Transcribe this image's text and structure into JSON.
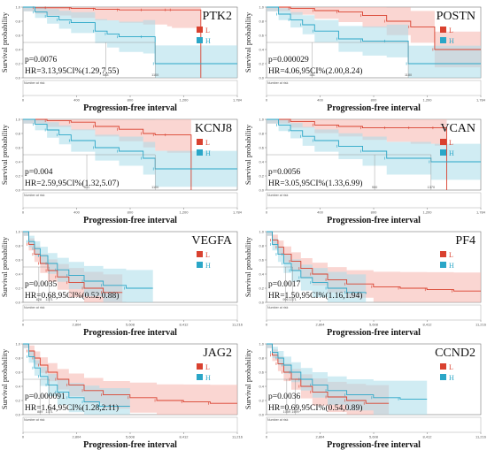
{
  "colors": {
    "low": "#d9412f",
    "high": "#2aa6c7",
    "low_band": "#f5b5ad",
    "high_band": "#a9dcea"
  },
  "common": {
    "ylabel": "Survival probability",
    "xlabel": "Progression-free interval",
    "risk_label": "Number at risk",
    "legend": [
      "L",
      "H"
    ]
  },
  "chart_data": [
    {
      "type": "line",
      "gene": "PTK2",
      "p": "p=0.0076",
      "hr": "HR=3.13,95CI%(1.29,7.55)",
      "xticks": [
        "0",
        "400",
        "800",
        "1,200",
        "1,784"
      ],
      "yticks": [
        "0.0",
        "0.2",
        "0.4",
        "0.6",
        "0.8",
        "1.0"
      ],
      "xlim": [
        0,
        1784
      ],
      "ylim": [
        0,
        1
      ],
      "median_labels": [
        "688",
        "1100"
      ],
      "medians": [
        688,
        1100
      ],
      "series": [
        {
          "name": "L",
          "x": [
            0,
            100,
            200,
            400,
            600,
            800,
            1000,
            1200,
            1240,
            1480
          ],
          "y": [
            1.0,
            0.99,
            0.99,
            0.98,
            0.97,
            0.96,
            0.96,
            0.96,
            0.96,
            0.0
          ]
        },
        {
          "name": "H",
          "x": [
            0,
            100,
            200,
            300,
            400,
            600,
            700,
            800,
            1000,
            1100,
            1784
          ],
          "y": [
            1.0,
            0.93,
            0.87,
            0.82,
            0.78,
            0.66,
            0.62,
            0.58,
            0.58,
            0.2,
            0.2
          ]
        }
      ]
    },
    {
      "type": "line",
      "gene": "POSTN",
      "p": "p=0.000029",
      "hr": "HR=4.06,95CI%(2.00,8.24)",
      "xticks": [
        "0",
        "400",
        "800",
        "1,200",
        "1,784"
      ],
      "yticks": [
        "0.0",
        "0.2",
        "0.4",
        "0.6",
        "0.8",
        "1.0"
      ],
      "xlim": [
        0,
        1784
      ],
      "ylim": [
        0,
        1
      ],
      "median_labels": [
        "381",
        "1180"
      ],
      "medians": [
        381,
        1180
      ],
      "series": [
        {
          "name": "L",
          "x": [
            0,
            200,
            400,
            600,
            800,
            1000,
            1200,
            1400,
            1784
          ],
          "y": [
            1.0,
            0.98,
            0.95,
            0.93,
            0.88,
            0.8,
            0.72,
            0.4,
            0.4
          ]
        },
        {
          "name": "H",
          "x": [
            0,
            100,
            200,
            300,
            400,
            600,
            800,
            1000,
            1180,
            1784
          ],
          "y": [
            1.0,
            0.9,
            0.82,
            0.75,
            0.66,
            0.55,
            0.52,
            0.52,
            0.2,
            0.2
          ]
        }
      ]
    },
    {
      "type": "line",
      "gene": "KCNJ8",
      "p": "p=0.004",
      "hr": "HR=2.59,95CI%(1.32,5.07)",
      "xticks": [
        "0",
        "400",
        "800",
        "1,200",
        "1,784"
      ],
      "yticks": [
        "0.0",
        "0.2",
        "0.4",
        "0.6",
        "0.8",
        "1.0"
      ],
      "xlim": [
        0,
        1784
      ],
      "ylim": [
        0,
        1
      ],
      "median_labels": [
        "531",
        "1100"
      ],
      "medians": [
        531,
        1100
      ],
      "series": [
        {
          "name": "L",
          "x": [
            0,
            200,
            400,
            600,
            800,
            1000,
            1100,
            1200,
            1400
          ],
          "y": [
            1.0,
            0.98,
            0.96,
            0.9,
            0.86,
            0.8,
            0.78,
            0.78,
            0.0
          ]
        },
        {
          "name": "H",
          "x": [
            0,
            100,
            200,
            300,
            400,
            600,
            800,
            1000,
            1100,
            1784
          ],
          "y": [
            1.0,
            0.93,
            0.85,
            0.78,
            0.7,
            0.6,
            0.55,
            0.45,
            0.3,
            0.3
          ]
        }
      ]
    },
    {
      "type": "line",
      "gene": "VCAN",
      "p": "p=0.0056",
      "hr": "HR=3.05,95CI%(1.33,6.99)",
      "xticks": [
        "0",
        "400",
        "800",
        "1,200",
        "1,784"
      ],
      "yticks": [
        "0.0",
        "0.2",
        "0.4",
        "0.6",
        "0.8",
        "1.0"
      ],
      "xlim": [
        0,
        1784
      ],
      "ylim": [
        0,
        1
      ],
      "median_labels": [
        "900",
        "1370"
      ],
      "medians": [
        900,
        1370
      ],
      "series": [
        {
          "name": "L",
          "x": [
            0,
            200,
            400,
            600,
            800,
            1000,
            1200,
            1400,
            1500
          ],
          "y": [
            1.0,
            0.97,
            0.92,
            0.9,
            0.88,
            0.88,
            0.88,
            0.88,
            0.0
          ]
        },
        {
          "name": "H",
          "x": [
            0,
            100,
            200,
            300,
            400,
            600,
            800,
            1000,
            1370,
            1784
          ],
          "y": [
            1.0,
            0.92,
            0.84,
            0.76,
            0.7,
            0.62,
            0.55,
            0.45,
            0.4,
            0.4
          ]
        }
      ]
    },
    {
      "type": "line",
      "gene": "VEGFA",
      "p": "p=0.0035",
      "hr": "HR=0.68,95CI%(0.52,0.88)",
      "xticks": [
        "0",
        "2,804",
        "5,608",
        "8,412",
        "11,216"
      ],
      "yticks": [
        "0.0",
        "0.2",
        "0.4",
        "0.6",
        "0.8",
        "1.0"
      ],
      "xlim": [
        0,
        11216
      ],
      "ylim": [
        0,
        1
      ],
      "median_labels": [
        "828",
        "1371"
      ],
      "medians": [
        828,
        1371
      ],
      "series": [
        {
          "name": "L",
          "x": [
            0,
            300,
            600,
            900,
            1300,
            1800,
            2400,
            3200,
            4200,
            5200
          ],
          "y": [
            1.0,
            0.82,
            0.68,
            0.55,
            0.45,
            0.36,
            0.28,
            0.2,
            0.14,
            0.14
          ]
        },
        {
          "name": "H",
          "x": [
            0,
            300,
            600,
            900,
            1300,
            1800,
            2400,
            3200,
            4200,
            5400,
            6800
          ],
          "y": [
            1.0,
            0.86,
            0.76,
            0.66,
            0.55,
            0.46,
            0.38,
            0.3,
            0.24,
            0.2,
            0.2
          ]
        }
      ]
    },
    {
      "type": "line",
      "gene": "PF4",
      "p": "p=0.0017",
      "hr": "HR=1.50,95CI%(1.16,1.94)",
      "xticks": [
        "0",
        "2,804",
        "5,608",
        "8,412",
        "11,216"
      ],
      "yticks": [
        "0.0",
        "0.2",
        "0.4",
        "0.6",
        "0.8",
        "1.0"
      ],
      "xlim": [
        0,
        11216
      ],
      "ylim": [
        0,
        1
      ],
      "median_labels": [
        "996",
        "1371"
      ],
      "medians": [
        996,
        1371
      ],
      "series": [
        {
          "name": "L",
          "x": [
            0,
            300,
            600,
            900,
            1300,
            1800,
            2400,
            3200,
            4200,
            5600,
            7000,
            8400,
            9800,
            11216
          ],
          "y": [
            1.0,
            0.88,
            0.78,
            0.68,
            0.58,
            0.48,
            0.4,
            0.32,
            0.26,
            0.22,
            0.2,
            0.18,
            0.16,
            0.16
          ]
        },
        {
          "name": "H",
          "x": [
            0,
            300,
            600,
            900,
            1300,
            1800,
            2400,
            3200,
            4200,
            5200
          ],
          "y": [
            1.0,
            0.82,
            0.68,
            0.55,
            0.45,
            0.35,
            0.28,
            0.2,
            0.14,
            0.12
          ]
        }
      ]
    },
    {
      "type": "line",
      "gene": "JAG2",
      "p": "p=0.000091",
      "hr": "HR=1.64,95CI%(1.28,2.11)",
      "xticks": [
        "0",
        "2,804",
        "5,608",
        "8,412",
        "11,216"
      ],
      "yticks": [
        "0.0",
        "0.2",
        "0.4",
        "0.6",
        "0.8",
        "1.0"
      ],
      "xlim": [
        0,
        11216
      ],
      "ylim": [
        0,
        1
      ],
      "median_labels": [
        "889",
        "1371"
      ],
      "medians": [
        889,
        1371
      ],
      "series": [
        {
          "name": "L",
          "x": [
            0,
            300,
            600,
            900,
            1300,
            1800,
            2400,
            3200,
            4200,
            5600,
            7000,
            8400,
            9800,
            11216
          ],
          "y": [
            1.0,
            0.9,
            0.8,
            0.7,
            0.6,
            0.5,
            0.42,
            0.34,
            0.28,
            0.24,
            0.2,
            0.18,
            0.16,
            0.16
          ]
        },
        {
          "name": "H",
          "x": [
            0,
            300,
            600,
            900,
            1300,
            1800,
            2400,
            3200,
            4000,
            5600
          ],
          "y": [
            1.0,
            0.82,
            0.66,
            0.54,
            0.42,
            0.32,
            0.24,
            0.18,
            0.12,
            0.12
          ]
        }
      ]
    },
    {
      "type": "line",
      "gene": "CCND2",
      "p": "p=0.0036",
      "hr": "HR=0.69,95CI%(0.54,0.89)",
      "xticks": [
        "0",
        "2,804",
        "5,608",
        "8,412",
        "11,216"
      ],
      "yticks": [
        "0.0",
        "0.2",
        "0.4",
        "0.6",
        "0.8",
        "1.0"
      ],
      "xlim": [
        0,
        11216
      ],
      "ylim": [
        0,
        1
      ],
      "median_labels": [
        "1059",
        "1499"
      ],
      "medians": [
        1059,
        1499
      ],
      "series": [
        {
          "name": "L",
          "x": [
            0,
            300,
            600,
            900,
            1300,
            1800,
            2400,
            3200,
            4200,
            5200,
            6400
          ],
          "y": [
            1.0,
            0.84,
            0.72,
            0.6,
            0.5,
            0.4,
            0.32,
            0.25,
            0.2,
            0.16,
            0.16
          ]
        },
        {
          "name": "H",
          "x": [
            0,
            300,
            600,
            900,
            1300,
            1800,
            2400,
            3200,
            4200,
            5600,
            7000,
            8400
          ],
          "y": [
            1.0,
            0.88,
            0.8,
            0.7,
            0.6,
            0.5,
            0.42,
            0.34,
            0.28,
            0.24,
            0.22,
            0.22
          ]
        }
      ]
    }
  ]
}
